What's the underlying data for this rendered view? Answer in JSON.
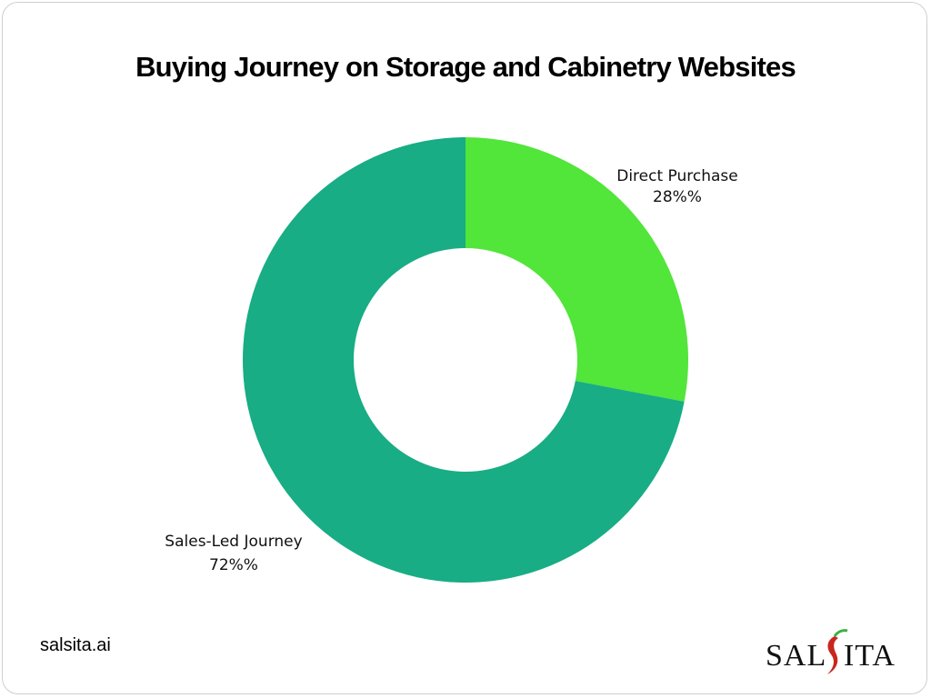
{
  "chart_data": {
    "type": "pie",
    "variant": "donut",
    "title": "Buying Journey on Storage and Cabinetry Websites",
    "slices": [
      {
        "label": "Direct Purchase",
        "value": 28,
        "display": "28%%",
        "color": "#52e53a"
      },
      {
        "label": "Sales-Led Journey",
        "value": 72,
        "display": "72%%",
        "color": "#18ad84"
      }
    ],
    "legend": "none"
  },
  "footer": {
    "site": "salsita.ai"
  },
  "logo": {
    "text": "SALSITA"
  }
}
